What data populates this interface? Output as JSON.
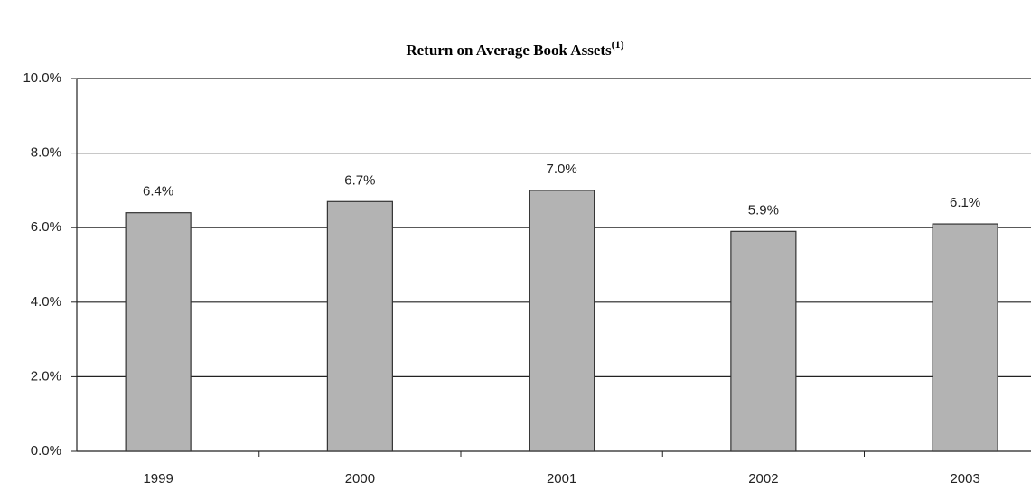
{
  "chart_data": {
    "type": "bar",
    "title": "Return on Average Book Assets",
    "title_note": "(1)",
    "categories": [
      "1999",
      "2000",
      "2001",
      "2002",
      "2003"
    ],
    "values": [
      6.4,
      6.7,
      7.0,
      5.9,
      6.1
    ],
    "value_labels": [
      "6.4%",
      "6.7%",
      "7.0%",
      "5.9%",
      "6.1%"
    ],
    "color": "#b3b3b3",
    "ylim": [
      0,
      10
    ],
    "yticks": [
      {
        "value": 0,
        "label": "0.0%"
      },
      {
        "value": 2,
        "label": "2.0%"
      },
      {
        "value": 4,
        "label": "4.0%"
      },
      {
        "value": 6,
        "label": "6.0%"
      },
      {
        "value": 8,
        "label": "8.0%"
      },
      {
        "value": 10,
        "label": "10.0%"
      }
    ],
    "grid": true
  }
}
